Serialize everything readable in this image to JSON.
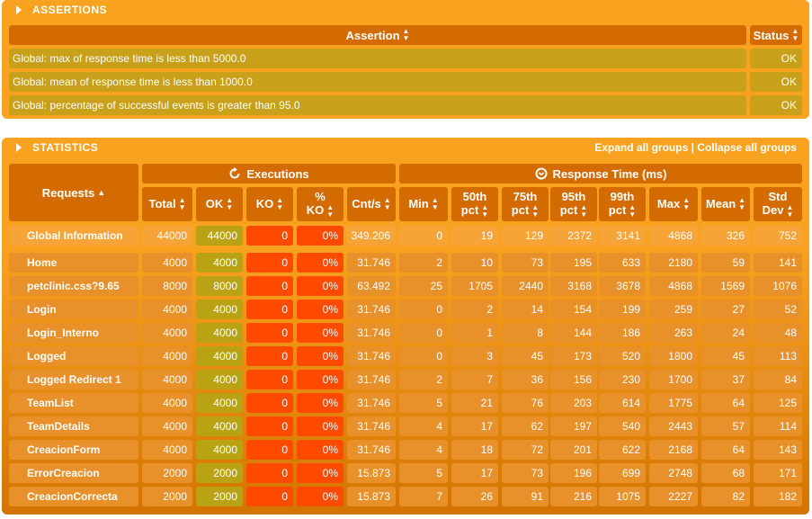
{
  "assertions": {
    "title": "ASSERTIONS",
    "header": {
      "assertion": "Assertion",
      "status": "Status"
    },
    "rows": [
      {
        "text": "Global: max of response time is less than 5000.0",
        "status": "OK"
      },
      {
        "text": "Global: mean of response time is less than 1000.0",
        "status": "OK"
      },
      {
        "text": "Global: percentage of successful events is greater than 95.0",
        "status": "OK"
      }
    ]
  },
  "statistics": {
    "title": "STATISTICS",
    "expand_label": "Expand all groups",
    "separator": " | ",
    "collapse_label": "Collapse all groups",
    "groups": {
      "executions": "Executions",
      "response_time": "Response Time (ms)"
    },
    "columns": {
      "requests": "Requests",
      "total": "Total",
      "ok": "OK",
      "ko": "KO",
      "pct_ko": "% KO",
      "cnts": "Cnt/s",
      "min": "Min",
      "p50": "50th pct",
      "p75": "75th pct",
      "p95": "95th pct",
      "p99": "99th pct",
      "max": "Max",
      "mean": "Mean",
      "std": "Std Dev"
    },
    "global": [
      "Global Information",
      "44000",
      "44000",
      "0",
      "0%",
      "349.206",
      "0",
      "19",
      "129",
      "2372",
      "3141",
      "4868",
      "326",
      "752"
    ],
    "rows": [
      [
        "Home",
        "4000",
        "4000",
        "0",
        "0%",
        "31.746",
        "2",
        "10",
        "73",
        "195",
        "633",
        "2180",
        "59",
        "141"
      ],
      [
        "petclinic.css?9.65",
        "8000",
        "8000",
        "0",
        "0%",
        "63.492",
        "25",
        "1705",
        "2440",
        "3168",
        "3678",
        "4868",
        "1569",
        "1076"
      ],
      [
        "Login",
        "4000",
        "4000",
        "0",
        "0%",
        "31.746",
        "0",
        "2",
        "14",
        "154",
        "199",
        "259",
        "27",
        "52"
      ],
      [
        "Login_Interno",
        "4000",
        "4000",
        "0",
        "0%",
        "31.746",
        "0",
        "1",
        "8",
        "144",
        "186",
        "263",
        "24",
        "48"
      ],
      [
        "Logged",
        "4000",
        "4000",
        "0",
        "0%",
        "31.746",
        "0",
        "3",
        "45",
        "173",
        "520",
        "1800",
        "45",
        "113"
      ],
      [
        "Logged Redirect 1",
        "4000",
        "4000",
        "0",
        "0%",
        "31.746",
        "2",
        "7",
        "36",
        "156",
        "230",
        "1700",
        "37",
        "84"
      ],
      [
        "TeamList",
        "4000",
        "4000",
        "0",
        "0%",
        "31.746",
        "5",
        "21",
        "76",
        "203",
        "614",
        "1775",
        "64",
        "125"
      ],
      [
        "TeamDetails",
        "4000",
        "4000",
        "0",
        "0%",
        "31.746",
        "4",
        "17",
        "62",
        "197",
        "540",
        "2443",
        "57",
        "114"
      ],
      [
        "CreacionForm",
        "4000",
        "4000",
        "0",
        "0%",
        "31.746",
        "4",
        "18",
        "72",
        "201",
        "622",
        "2168",
        "64",
        "143"
      ],
      [
        "ErrorCreacion",
        "2000",
        "2000",
        "0",
        "0%",
        "15.873",
        "5",
        "17",
        "73",
        "196",
        "699",
        "2748",
        "68",
        "171"
      ],
      [
        "CreacionCorrecta",
        "2000",
        "2000",
        "0",
        "0%",
        "15.873",
        "7",
        "26",
        "91",
        "216",
        "1075",
        "2227",
        "82",
        "182"
      ]
    ]
  }
}
